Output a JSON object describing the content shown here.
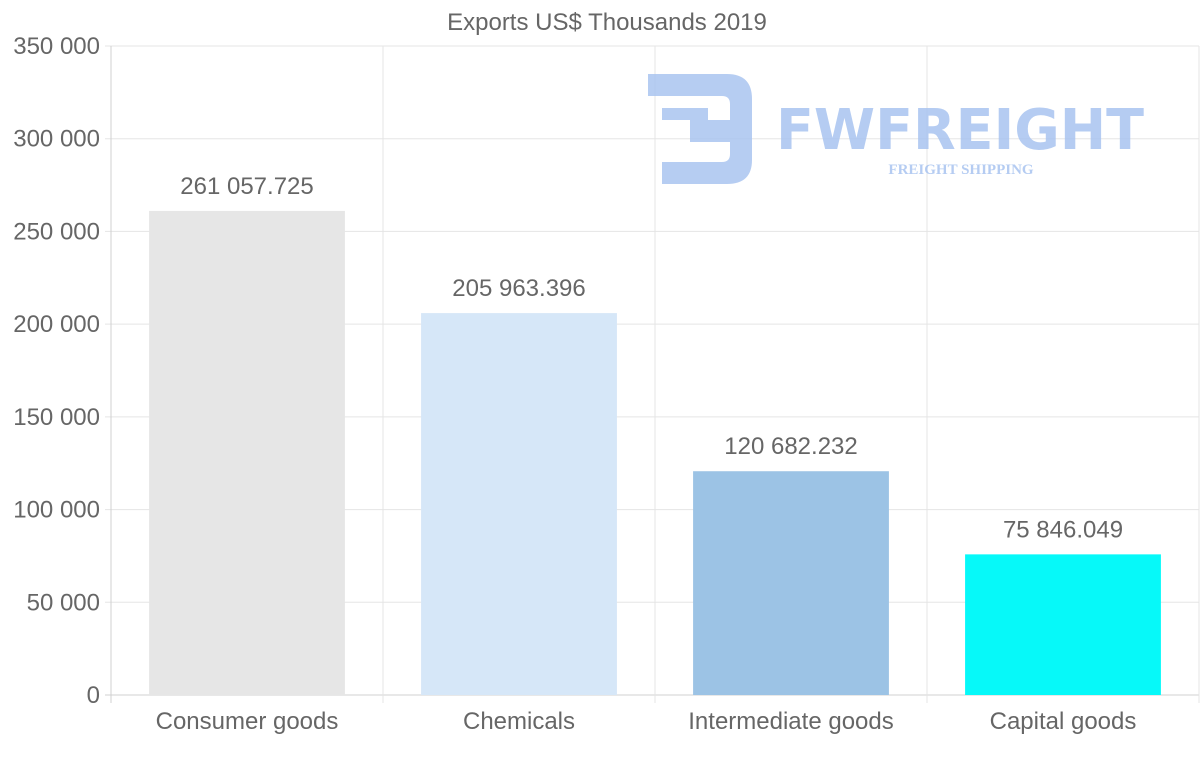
{
  "chart_data": {
    "type": "bar",
    "title": "Exports US$ Thousands 2019",
    "categories": [
      "Consumer goods",
      "Chemicals",
      "Intermediate goods",
      "Capital goods"
    ],
    "values": [
      261057.725,
      205963.396,
      120682.232,
      75846.049
    ],
    "value_labels": [
      "261 057.725",
      "205 963.396",
      "120 682.232",
      "75 846.049"
    ],
    "bar_colors": [
      "#e6e6e6",
      "#d6e7f8",
      "#9cc3e5",
      "#06f9f9"
    ],
    "ylim": [
      0,
      350000
    ],
    "yticks": [
      0,
      50000,
      100000,
      150000,
      200000,
      250000,
      300000,
      350000
    ],
    "ytick_labels": [
      "0",
      "50 000",
      "100 000",
      "150 000",
      "200 000",
      "250 000",
      "300 000",
      "350 000"
    ],
    "xlabel": "",
    "ylabel": "",
    "grid": true,
    "legend": "none"
  },
  "watermark": {
    "brand": "FWFREIGHT",
    "tagline": "FREIGHT SHIPPING",
    "color": "#a9c4f0"
  },
  "colors": {
    "text": "#666666",
    "grid": "#e5e5e5",
    "axis": "#d0d0d0"
  }
}
